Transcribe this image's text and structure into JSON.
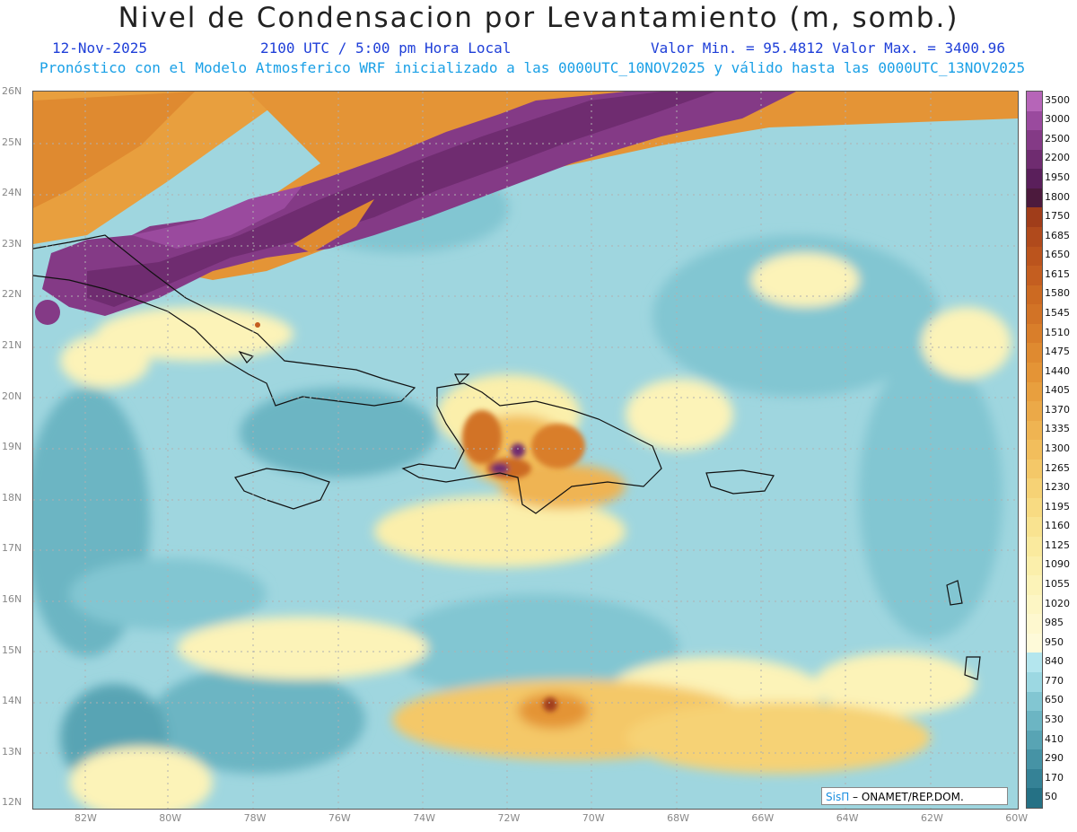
{
  "title": "Nivel de Condensacion por Levantamiento (m, somb.)",
  "date": "12-Nov-2025",
  "time": "2100 UTC / 5:00 pm Hora Local",
  "min_max": "Valor Min. = 95.4812  Valor Max. = 3400.96",
  "forecast_note": "Pronóstico con el Modelo Atmosferico WRF inicializado a las 0000UTC_10NOV2025 y válido hasta las  0000UTC_13NOV2025",
  "lat_labels": [
    "26N",
    "25N",
    "24N",
    "23N",
    "22N",
    "21N",
    "20N",
    "19N",
    "18N",
    "17N",
    "16N",
    "15N",
    "14N",
    "13N",
    "12N"
  ],
  "lon_labels": [
    "82W",
    "80W",
    "78W",
    "76W",
    "74W",
    "72W",
    "70W",
    "68W",
    "66W",
    "64W",
    "62W",
    "60W"
  ],
  "colorbar": {
    "labels": [
      "3500",
      "3000",
      "2500",
      "2200",
      "1950",
      "1800",
      "1750",
      "1685",
      "1650",
      "1615",
      "1580",
      "1545",
      "1510",
      "1475",
      "1440",
      "1405",
      "1370",
      "1335",
      "1300",
      "1265",
      "1230",
      "1195",
      "1160",
      "1125",
      "1090",
      "1055",
      "1020",
      "985",
      "950",
      "840",
      "770",
      "650",
      "530",
      "410",
      "290",
      "170",
      "50"
    ],
    "colors": [
      "#b665b8",
      "#9a4a9e",
      "#843a86",
      "#6f2c70",
      "#5a1f5b",
      "#4c1a3d",
      "#a03d1a",
      "#b04a1c",
      "#bb541d",
      "#c45e20",
      "#cc6a22",
      "#d27326",
      "#d97e2a",
      "#df8a30",
      "#e49436",
      "#e89f3e",
      "#eba948",
      "#efb452",
      "#f2be5c",
      "#f4c868",
      "#f6d275",
      "#f8db82",
      "#f9e390",
      "#faea9e",
      "#fbefab",
      "#fcf3b8",
      "#fdf6c4",
      "#fef8cf",
      "#fefad9",
      "#b4e6ee",
      "#9cd8e2",
      "#82c6d2",
      "#6cb5c3",
      "#58a4b4",
      "#4693a5",
      "#358296",
      "#257185"
    ]
  },
  "credit": {
    "brand": "SisΠ",
    "text": " – ONAMET/REP.DOM."
  }
}
